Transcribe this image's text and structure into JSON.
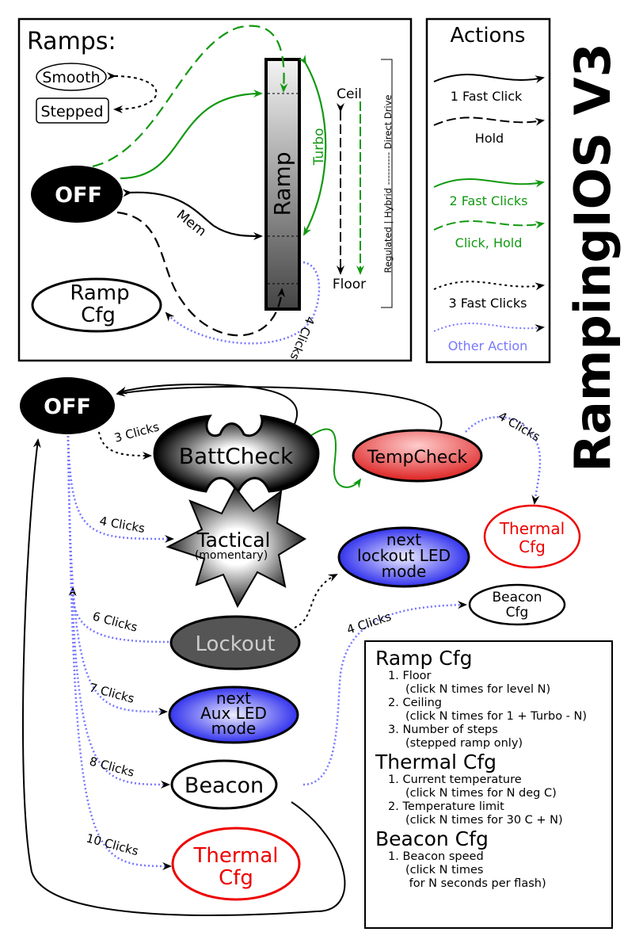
{
  "title": "RampingIOS V3",
  "ramps": {
    "heading": "Ramps:",
    "off": "OFF",
    "smooth": "Smooth",
    "stepped": "Stepped",
    "ramp": "Ramp",
    "ramp_cfg_line1": "Ramp",
    "ramp_cfg_line2": "Cfg",
    "ceil": "Ceil",
    "floor": "Floor",
    "turbo": "Turbo",
    "mem": "Mem",
    "four_clicks": "4 Clicks",
    "modes_scale": "Regulated | Hybrid ---------- Direct Drive"
  },
  "actions": {
    "heading": "Actions",
    "items": [
      {
        "label": "1 Fast Click",
        "color": "#000000",
        "style": "solid"
      },
      {
        "label": "Hold",
        "color": "#000000",
        "style": "dashed"
      },
      {
        "label": "2 Fast Clicks",
        "color": "#119911",
        "style": "solid"
      },
      {
        "label": "Click, Hold",
        "color": "#119911",
        "style": "dashed"
      },
      {
        "label": "3 Fast Clicks",
        "color": "#000000",
        "style": "dotted"
      },
      {
        "label": "Other Action",
        "color": "#7777ff",
        "style": "dotted"
      }
    ]
  },
  "states": {
    "off": "OFF",
    "battcheck": "BattCheck",
    "tempcheck": "TempCheck",
    "thermal_cfg_top": [
      "Thermal",
      "Cfg"
    ],
    "tactical": [
      "Tactical",
      "(momentary)"
    ],
    "next_lockout_led": [
      "next",
      "lockout LED",
      "mode"
    ],
    "beacon_cfg": [
      "Beacon",
      "Cfg"
    ],
    "lockout": "Lockout",
    "next_aux_led": [
      "next",
      "Aux LED",
      "mode"
    ],
    "beacon": "Beacon",
    "thermal_cfg_bottom": [
      "Thermal",
      "Cfg"
    ]
  },
  "edges": {
    "off_batt": "3 Clicks",
    "off_tactical": "4 Clicks",
    "off_lockout": "6 Clicks",
    "off_aux": "7 Clicks",
    "off_beacon": "8 Clicks",
    "off_thermal": "10 Clicks",
    "beacon_cfg": "4 Clicks",
    "temp_thermal": "4 Clicks"
  },
  "config": {
    "ramp": {
      "heading": "Ramp Cfg",
      "items": [
        {
          "label": "1. Floor",
          "note": "(click N times for level N)"
        },
        {
          "label": "2. Ceiling",
          "note": "(click N times for 1 + Turbo - N)"
        },
        {
          "label": "3. Number of steps",
          "note": "(stepped ramp only)"
        }
      ]
    },
    "thermal": {
      "heading": "Thermal Cfg",
      "items": [
        {
          "label": "1. Current temperature",
          "note": "(click N times for N deg C)"
        },
        {
          "label": "2. Temperature limit",
          "note": "(click N times for 30 C + N)"
        }
      ]
    },
    "beacon": {
      "heading": "Beacon Cfg",
      "items": [
        {
          "label": "1. Beacon speed",
          "note": "(click N times",
          "note2": " for N seconds per flash)"
        }
      ]
    }
  },
  "colors": {
    "green": "#119911",
    "other": "#7777ff",
    "thermal": "#ee0000",
    "lockout": "#555555"
  }
}
